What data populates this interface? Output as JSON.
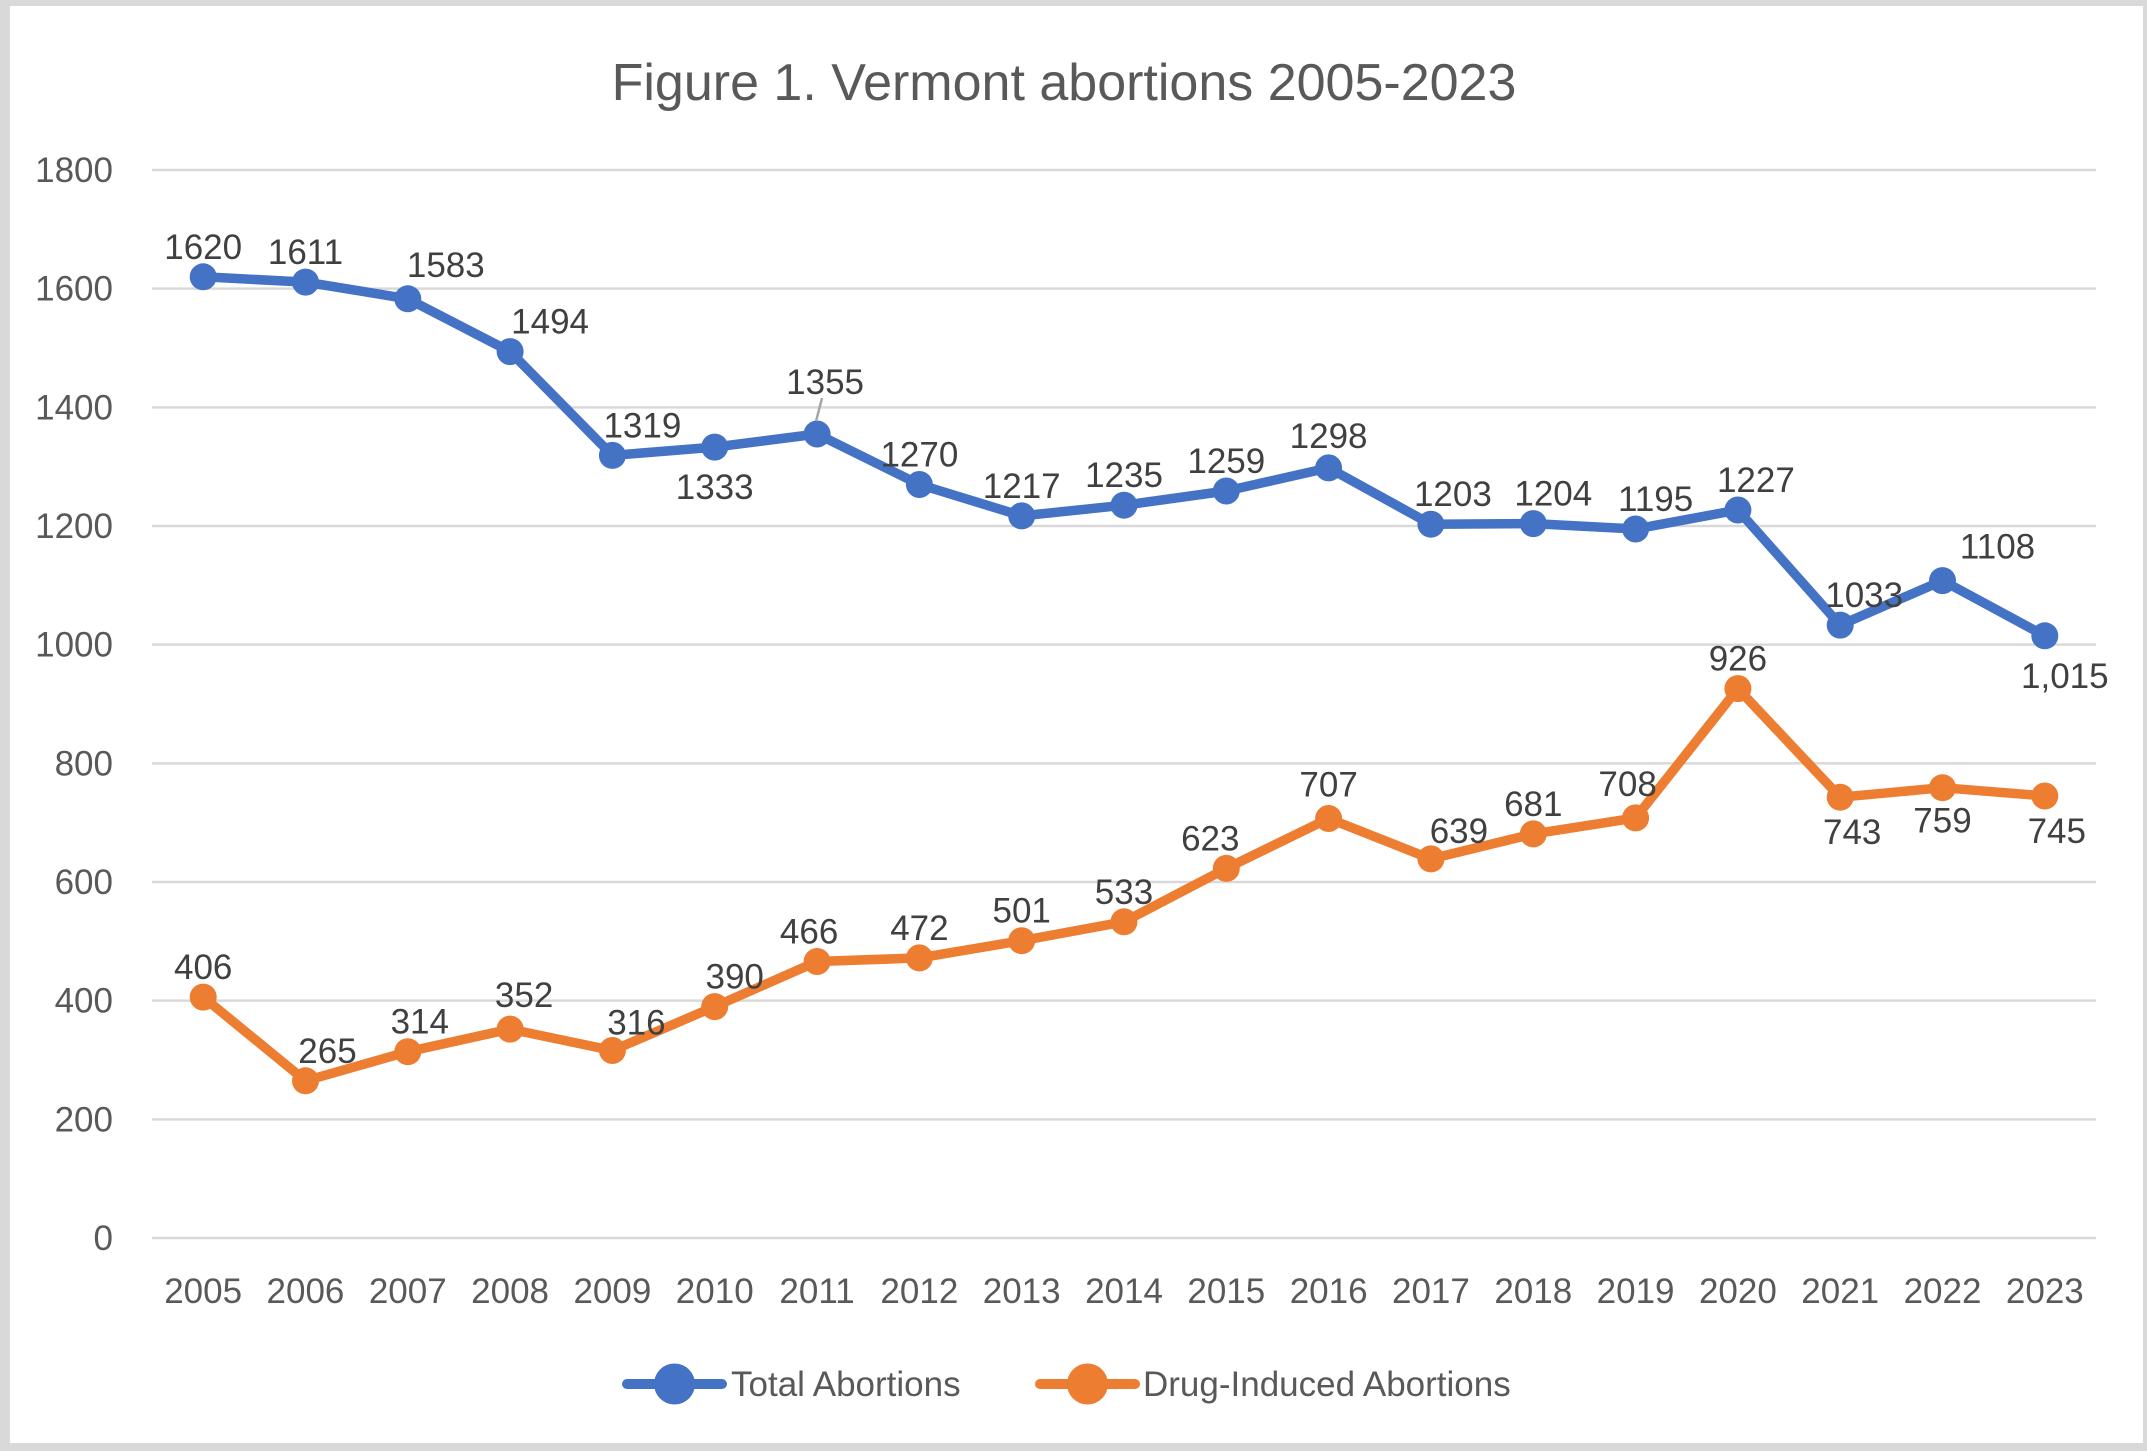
{
  "window": {
    "border_color": "#d9d9d9",
    "background": "#ffffff"
  },
  "chart_data": {
    "type": "line",
    "title": "Figure 1. Vermont abortions 2005-2023",
    "categories": [
      "2005",
      "2006",
      "2007",
      "2008",
      "2009",
      "2010",
      "2011",
      "2012",
      "2013",
      "2014",
      "2015",
      "2016",
      "2017",
      "2018",
      "2019",
      "2020",
      "2021",
      "2022",
      "2023"
    ],
    "series": [
      {
        "name": "Total Abortions",
        "color": "#4472C4",
        "values": [
          1620,
          1611,
          1583,
          1494,
          1319,
          1333,
          1355,
          1270,
          1217,
          1235,
          1259,
          1298,
          1203,
          1204,
          1195,
          1227,
          1033,
          1108,
          1015
        ],
        "labels": [
          "1620",
          "1611",
          "1583",
          "1494",
          "1319",
          "1333",
          "1355",
          "1270",
          "1217",
          "1235",
          "1259",
          "1298",
          "1203",
          "1204",
          "1195",
          "1227",
          "1033",
          "1108",
          "1,015"
        ],
        "label_offsets": [
          [
            0,
            -18
          ],
          [
            0,
            -18
          ],
          [
            38,
            -22
          ],
          [
            40,
            -18
          ],
          [
            30,
            -18
          ],
          [
            0,
            52
          ],
          [
            8,
            -40
          ],
          [
            0,
            -18
          ],
          [
            0,
            -18
          ],
          [
            0,
            -18
          ],
          [
            0,
            -18
          ],
          [
            0,
            -20
          ],
          [
            22,
            -18
          ],
          [
            20,
            -18
          ],
          [
            20,
            -18
          ],
          [
            18,
            -18
          ],
          [
            24,
            -18
          ],
          [
            55,
            -22
          ],
          [
            20,
            52
          ]
        ]
      },
      {
        "name": "Drug-Induced Abortions",
        "color": "#ED7D31",
        "values": [
          406,
          265,
          314,
          352,
          316,
          390,
          466,
          472,
          501,
          533,
          623,
          707,
          639,
          681,
          708,
          926,
          743,
          759,
          745
        ],
        "labels": [
          "406",
          "265",
          "314",
          "352",
          "316",
          "390",
          "466",
          "472",
          "501",
          "533",
          "623",
          "707",
          "639",
          "681",
          "708",
          "926",
          "743",
          "759",
          "745"
        ],
        "label_offsets": [
          [
            0,
            -18
          ],
          [
            22,
            -18
          ],
          [
            12,
            -18
          ],
          [
            14,
            -22
          ],
          [
            24,
            -16
          ],
          [
            20,
            -18
          ],
          [
            -8,
            -18
          ],
          [
            0,
            -18
          ],
          [
            0,
            -18
          ],
          [
            0,
            -18
          ],
          [
            -16,
            -18
          ],
          [
            0,
            -22
          ],
          [
            28,
            -16
          ],
          [
            0,
            -18
          ],
          [
            -8,
            -22
          ],
          [
            0,
            -18
          ],
          [
            12,
            47
          ],
          [
            0,
            45
          ],
          [
            12,
            47
          ]
        ]
      }
    ],
    "y_axis": {
      "min": 0,
      "max": 1800,
      "step": 200,
      "tick_labels": [
        "0",
        "200",
        "400",
        "600",
        "800",
        "1000",
        "1200",
        "1400",
        "1600",
        "1800"
      ]
    },
    "x_axis": {
      "tick_labels": [
        "2005",
        "2006",
        "2007",
        "2008",
        "2009",
        "2010",
        "2011",
        "2012",
        "2013",
        "2014",
        "2015",
        "2016",
        "2017",
        "2018",
        "2019",
        "2020",
        "2021",
        "2022",
        "2023"
      ]
    },
    "grid": true,
    "legend_position": "bottom",
    "annotation": {
      "type": "leader-line",
      "series": 0,
      "index": 6
    },
    "colors": {
      "gridline": "#D9D9D9",
      "axis_text": "#595959",
      "data_label_text": "#404040",
      "title_text": "#595959",
      "legend_text": "#595959",
      "leader_line": "#A6A6A6"
    }
  }
}
